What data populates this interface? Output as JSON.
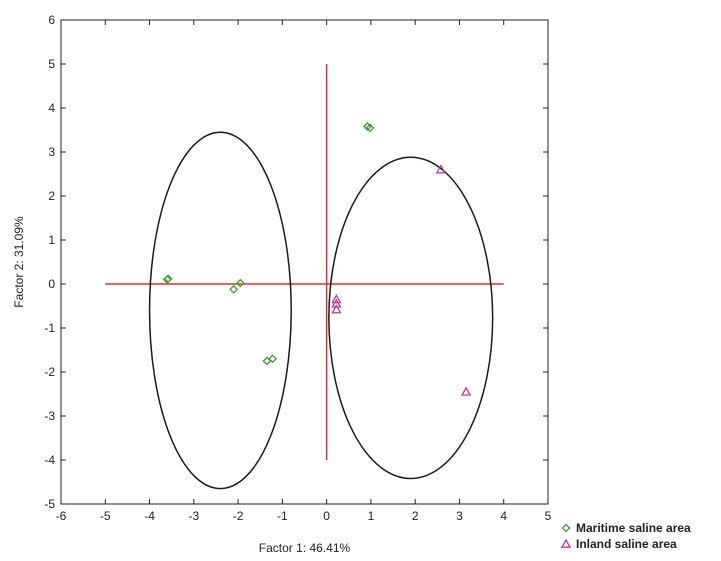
{
  "chart_data": {
    "type": "scatter",
    "xlabel": "Factor 1: 46.41%",
    "ylabel": "Factor 2: 31.09%",
    "xlim": [
      -6,
      5
    ],
    "ylim": [
      -5,
      6
    ],
    "xticks": [
      "-6",
      "-5",
      "-4",
      "-3",
      "-2",
      "-1",
      "0",
      "1",
      "2",
      "3",
      "4",
      "5"
    ],
    "yticks": [
      "-5",
      "-4",
      "-3",
      "-2",
      "-1",
      "0",
      "1",
      "2",
      "3",
      "4",
      "5",
      "6"
    ],
    "grid": false,
    "legend_position": "bottom-right",
    "series": [
      {
        "name": "Maritime saline area",
        "marker": "diamond",
        "color": "#3f9a3a",
        "points": [
          {
            "x": -3.6,
            "y": 0.1
          },
          {
            "x": -3.58,
            "y": 0.12
          },
          {
            "x": -1.95,
            "y": 0.02
          },
          {
            "x": -2.1,
            "y": -0.12
          },
          {
            "x": -1.35,
            "y": -1.75
          },
          {
            "x": -1.22,
            "y": -1.7
          },
          {
            "x": 0.92,
            "y": 3.58
          },
          {
            "x": 0.98,
            "y": 3.55
          }
        ]
      },
      {
        "name": "Inland saline area",
        "marker": "triangle",
        "color": "#c0359a",
        "points": [
          {
            "x": 2.58,
            "y": 2.6
          },
          {
            "x": 0.22,
            "y": -0.35
          },
          {
            "x": 0.22,
            "y": -0.45
          },
          {
            "x": 0.22,
            "y": -0.58
          },
          {
            "x": 3.15,
            "y": -2.45
          }
        ]
      }
    ],
    "reference_lines": {
      "color": "#e0302a",
      "horizontal": {
        "y": 0,
        "x_from": -5,
        "x_to": 4
      },
      "vertical": {
        "x": 0,
        "y_from": -4,
        "y_to": 5
      }
    },
    "ellipses": [
      {
        "cx": -2.4,
        "cy": -0.6,
        "rx": 1.6,
        "ry": 4.05
      },
      {
        "cx": 1.9,
        "cy": -0.77,
        "rx": 1.85,
        "ry": 3.65
      }
    ]
  }
}
